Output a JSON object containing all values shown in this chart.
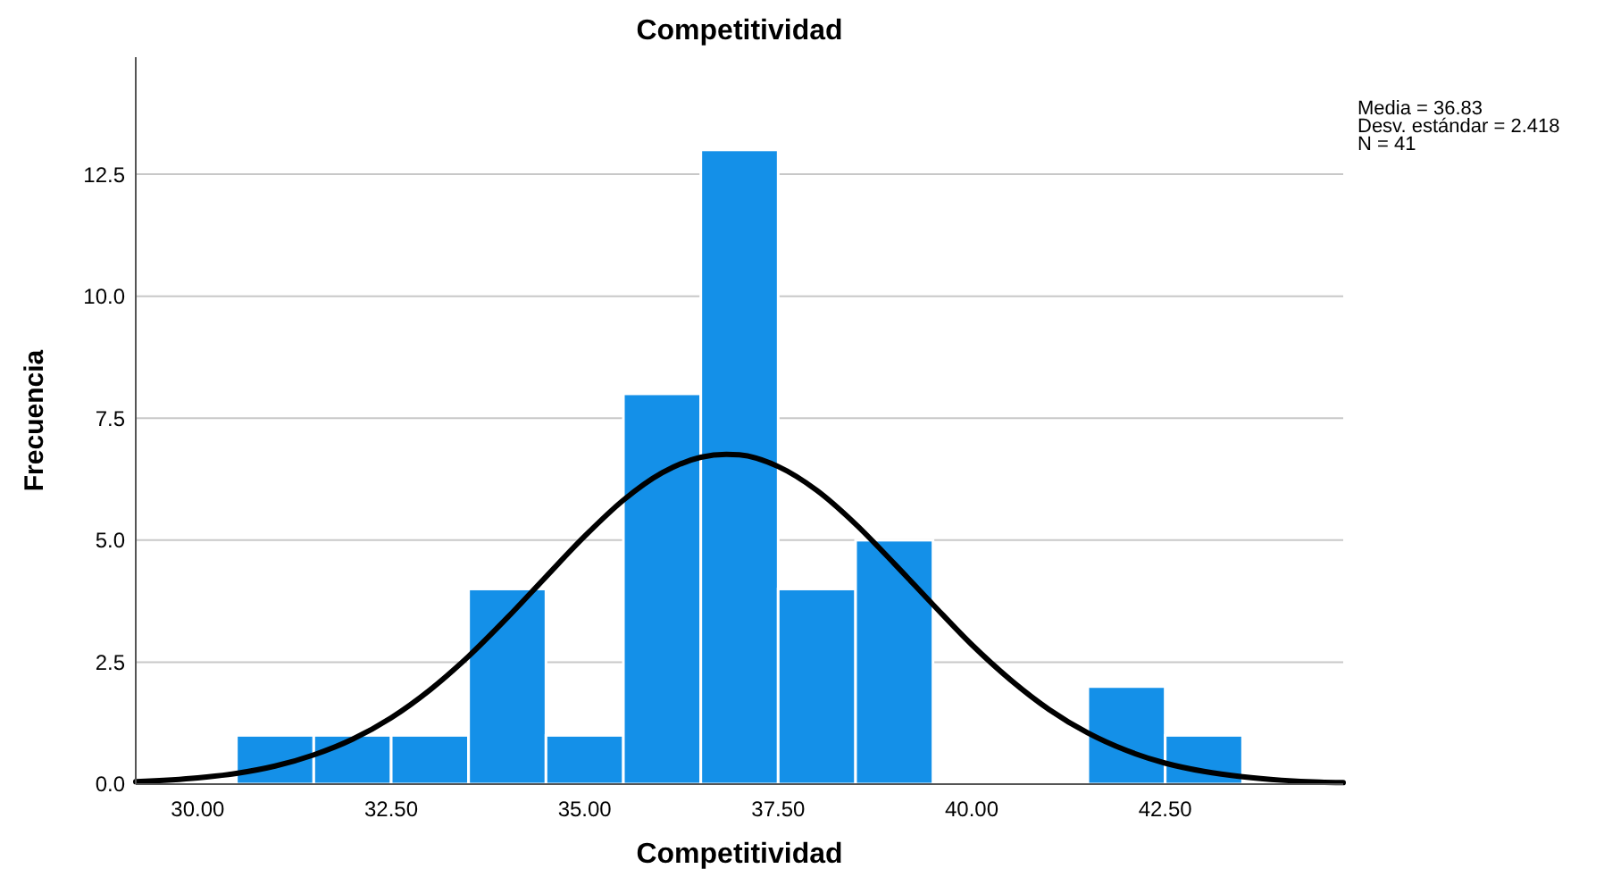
{
  "chart_data": {
    "type": "histogram",
    "title": "Competitividad",
    "xlabel": "Competitividad",
    "ylabel": "Frecuencia",
    "color": "#1490e8",
    "bins": [
      30.5,
      31.5,
      32.5,
      33.5,
      34.5,
      35.5,
      36.5,
      37.5,
      38.5,
      39.5,
      40.5,
      41.5,
      42.5,
      43.5
    ],
    "values": [
      1,
      1,
      1,
      4,
      1,
      8,
      13,
      4,
      5,
      0,
      0,
      2,
      1
    ],
    "series": [
      {
        "type": "line",
        "color": "#000000",
        "x": [
          29.2,
          30,
          30.5,
          31,
          31.5,
          32,
          32.5,
          33,
          33.5,
          34,
          34.5,
          35,
          35.5,
          36,
          36.5,
          36.83,
          37,
          37.5,
          38,
          38.5,
          39,
          39.5,
          40,
          40.5,
          41,
          41.5,
          42,
          42.5,
          43,
          43.5,
          44,
          44.5,
          44.8
        ],
        "values": [
          0.05,
          0.13,
          0.22,
          0.37,
          0.6,
          0.92,
          1.36,
          1.93,
          2.62,
          3.41,
          4.25,
          5.08,
          5.82,
          6.38,
          6.7,
          6.76,
          6.75,
          6.51,
          6.02,
          5.33,
          4.52,
          3.68,
          2.86,
          2.14,
          1.53,
          1.05,
          0.69,
          0.43,
          0.26,
          0.15,
          0.08,
          0.04,
          0.03
        ]
      }
    ],
    "xlim": [
      29.2,
      44.8
    ],
    "ylim": [
      0,
      14.9
    ],
    "xticks": [
      {
        "value": 30,
        "label": "30.00"
      },
      {
        "value": 32.5,
        "label": "32.50"
      },
      {
        "value": 35,
        "label": "35.00"
      },
      {
        "value": 37.5,
        "label": "37.50"
      },
      {
        "value": 40,
        "label": "40.00"
      },
      {
        "value": 42.5,
        "label": "42.50"
      }
    ],
    "yticks": [
      {
        "value": 0,
        "label": "0.0"
      },
      {
        "value": 2.5,
        "label": "2.5"
      },
      {
        "value": 5,
        "label": "5.0"
      },
      {
        "value": 7.5,
        "label": "7.5"
      },
      {
        "value": 10,
        "label": "10.0"
      },
      {
        "value": 12.5,
        "label": "12.5"
      }
    ],
    "grid": "y",
    "annotations": [
      "Media = 36.83",
      "Desv. estándar = 2.418",
      "N = 41"
    ]
  }
}
